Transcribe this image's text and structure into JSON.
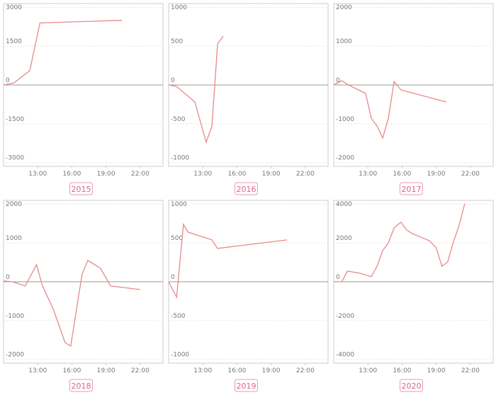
{
  "chart_data": [
    {
      "type": "line",
      "title": "2015",
      "color": "#e8898a",
      "grid": true,
      "x": [
        10,
        10.9,
        12.3,
        13.2,
        20.4
      ],
      "values": [
        0,
        80,
        550,
        2400,
        2500
      ],
      "xlim": [
        10,
        24
      ],
      "xticks": [
        {
          "value": 13,
          "label": "13:00"
        },
        {
          "value": 16,
          "label": "16:00"
        },
        {
          "value": 19,
          "label": "19:00"
        },
        {
          "value": 22,
          "label": "22:00"
        }
      ],
      "ylim": [
        -3150,
        3150
      ],
      "yticks": [
        -3000,
        -1500,
        0,
        1500,
        3000
      ]
    },
    {
      "type": "line",
      "title": "2016",
      "color": "#e8898a",
      "grid": true,
      "x": [
        10,
        10.7,
        12.3,
        13.3,
        13.8,
        14.3,
        14.8
      ],
      "values": [
        0,
        -20,
        -220,
        -740,
        -530,
        530,
        630
      ],
      "xlim": [
        10,
        24
      ],
      "xticks": [
        {
          "value": 13,
          "label": "13:00"
        },
        {
          "value": 16,
          "label": "16:00"
        },
        {
          "value": 19,
          "label": "19:00"
        },
        {
          "value": 22,
          "label": "22:00"
        }
      ],
      "ylim": [
        -1050,
        1050
      ],
      "yticks": [
        -1000,
        -500,
        0,
        500,
        1000
      ]
    },
    {
      "type": "line",
      "title": "2017",
      "color": "#e8898a",
      "grid": true,
      "x": [
        10,
        10.7,
        11.3,
        12.8,
        13.3,
        13.8,
        14.3,
        14.8,
        15.3,
        15.9,
        19.9
      ],
      "values": [
        0,
        110,
        0,
        -220,
        -860,
        -1060,
        -1370,
        -860,
        90,
        -130,
        -440
      ],
      "xlim": [
        10,
        24
      ],
      "xticks": [
        {
          "value": 13,
          "label": "13:00"
        },
        {
          "value": 16,
          "label": "16:00"
        },
        {
          "value": 19,
          "label": "19:00"
        },
        {
          "value": 22,
          "label": "22:00"
        }
      ],
      "ylim": [
        -2100,
        2100
      ],
      "yticks": [
        -2000,
        -1000,
        0,
        1000,
        2000
      ]
    },
    {
      "type": "line",
      "title": "2018",
      "color": "#e8898a",
      "grid": true,
      "x": [
        10,
        10.8,
        11.9,
        12.9,
        13.4,
        14.4,
        15.4,
        15.9,
        16.9,
        17.4,
        18.5,
        19.4,
        22
      ],
      "values": [
        20,
        0,
        -110,
        440,
        -90,
        -730,
        -1570,
        -1660,
        200,
        550,
        350,
        -110,
        -200
      ],
      "xlim": [
        10,
        24
      ],
      "xticks": [
        {
          "value": 13,
          "label": "13:00"
        },
        {
          "value": 16,
          "label": "16:00"
        },
        {
          "value": 19,
          "label": "19:00"
        },
        {
          "value": 22,
          "label": "22:00"
        }
      ],
      "ylim": [
        -2100,
        2100
      ],
      "yticks": [
        -2000,
        -1000,
        0,
        1000,
        2000
      ]
    },
    {
      "type": "line",
      "title": "2019",
      "color": "#e8898a",
      "grid": true,
      "x": [
        10,
        10.7,
        11.3,
        11.7,
        13.8,
        14.3,
        20.4
      ],
      "values": [
        0,
        -200,
        740,
        640,
        540,
        430,
        540
      ],
      "xlim": [
        10,
        24
      ],
      "xticks": [
        {
          "value": 13,
          "label": "13:00"
        },
        {
          "value": 16,
          "label": "16:00"
        },
        {
          "value": 19,
          "label": "19:00"
        },
        {
          "value": 22,
          "label": "22:00"
        }
      ],
      "ylim": [
        -1050,
        1050
      ],
      "yticks": [
        -1000,
        -500,
        0,
        500,
        1000
      ]
    },
    {
      "type": "line",
      "title": "2020",
      "color": "#e8898a",
      "grid": true,
      "x": [
        10,
        10.7,
        11.2,
        12.3,
        13.3,
        13.8,
        14.3,
        14.8,
        15.3,
        15.9,
        16.4,
        16.9,
        18.4,
        19.0,
        19.5,
        20.0,
        20.5,
        21.0,
        21.5
      ],
      "values": [
        0,
        0,
        550,
        440,
        260,
        800,
        1610,
        2010,
        2780,
        3070,
        2670,
        2480,
        2120,
        1750,
        800,
        1020,
        2040,
        2890,
        4020
      ],
      "xlim": [
        10,
        24
      ],
      "xticks": [
        {
          "value": 13,
          "label": "13:00"
        },
        {
          "value": 16,
          "label": "16:00"
        },
        {
          "value": 19,
          "label": "19:00"
        },
        {
          "value": 22,
          "label": "22:00"
        }
      ],
      "ylim": [
        -4200,
        4200
      ],
      "yticks": [
        -4000,
        -2000,
        0,
        2000,
        4000
      ]
    }
  ]
}
